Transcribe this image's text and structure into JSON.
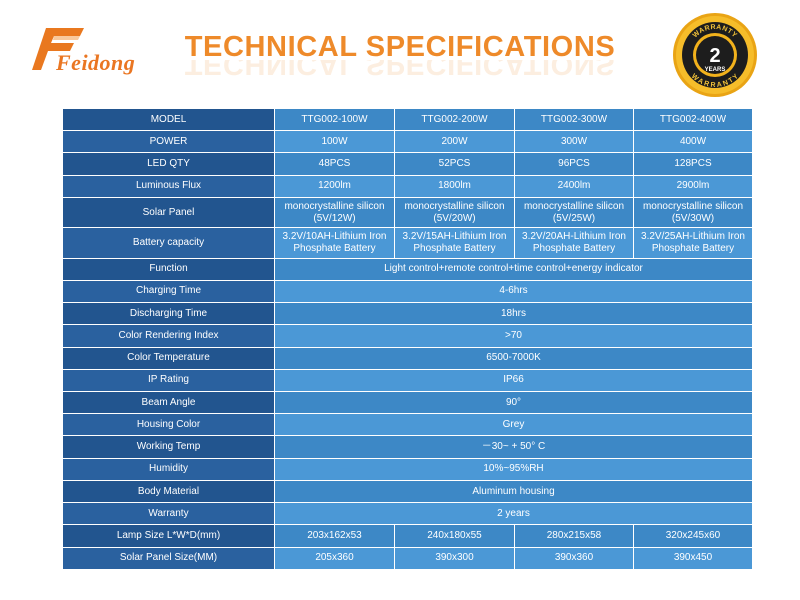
{
  "header": {
    "brand": "Feidong",
    "title": "TECHNICAL SPECIFICATIONS",
    "badge": {
      "top_text": "WARRANTY",
      "number": "2",
      "unit": "YEARS",
      "bottom_text": "WARRANTY"
    }
  },
  "models": [
    "TTG002-100W",
    "TTG002-200W",
    "TTG002-300W",
    "TTG002-400W"
  ],
  "rows": {
    "model": {
      "label": "MODEL"
    },
    "power": {
      "label": "POWER",
      "values": [
        "100W",
        "200W",
        "300W",
        "400W"
      ]
    },
    "led_qty": {
      "label": "LED QTY",
      "values": [
        "48PCS",
        "52PCS",
        "96PCS",
        "128PCS"
      ]
    },
    "flux": {
      "label": "Luminous Flux",
      "values": [
        "1200lm",
        "1800lm",
        "2400lm",
        "2900lm"
      ]
    },
    "solar_panel": {
      "label": "Solar Panel",
      "line1": [
        "monocrystalline silicon",
        "monocrystalline silicon",
        "monocrystalline silicon",
        "monocrystalline silicon"
      ],
      "line2": [
        "(5V/12W)",
        "(5V/20W)",
        "(5V/25W)",
        "(5V/30W)"
      ]
    },
    "battery": {
      "label": "Battery capacity",
      "line1": [
        "3.2V/10AH-Lithium Iron",
        "3.2V/15AH-Lithium Iron",
        "3.2V/20AH-Lithium Iron",
        "3.2V/25AH-Lithium Iron"
      ],
      "line2": [
        "Phosphate Battery",
        "Phosphate Battery",
        "Phosphate Battery",
        "Phosphate Battery"
      ]
    },
    "function": {
      "label": "Function",
      "value": "Light control+remote control+time control+energy indicator"
    },
    "charging": {
      "label": "Charging Time",
      "value": "4-6hrs"
    },
    "discharging": {
      "label": "Discharging Time",
      "value": "18hrs"
    },
    "cri": {
      "label": "Color Rendering Index",
      "value": ">70"
    },
    "color_temp": {
      "label": "Color Temperature",
      "value": "6500-7000K"
    },
    "ip": {
      "label": "IP Rating",
      "value": "IP66"
    },
    "beam": {
      "label": "Beam Angle",
      "value": "90°"
    },
    "housing": {
      "label": "Housing Color",
      "value": "Grey"
    },
    "work_temp": {
      "label": "Working Temp",
      "value": "－30~ + 50° C"
    },
    "humidity": {
      "label": "Humidity",
      "value": "10%~95%RH"
    },
    "body": {
      "label": "Body Material",
      "value": "Aluminum housing"
    },
    "warranty": {
      "label": "Warranty",
      "value": "2 years"
    },
    "lamp_size": {
      "label": "Lamp Size L*W*D(mm)",
      "values": [
        "203x162x53",
        "240x180x55",
        "280x215x58",
        "320x245x60"
      ]
    },
    "panel_size": {
      "label": "Solar Panel Size(MM)",
      "values": [
        "205x360",
        "390x300",
        "390x360",
        "390x450"
      ]
    }
  },
  "colors": {
    "accent": "#ee8a2a",
    "label_bg": "#235895",
    "cell_bg": "#3d88c6",
    "badge_gold": "#f2b21c"
  }
}
